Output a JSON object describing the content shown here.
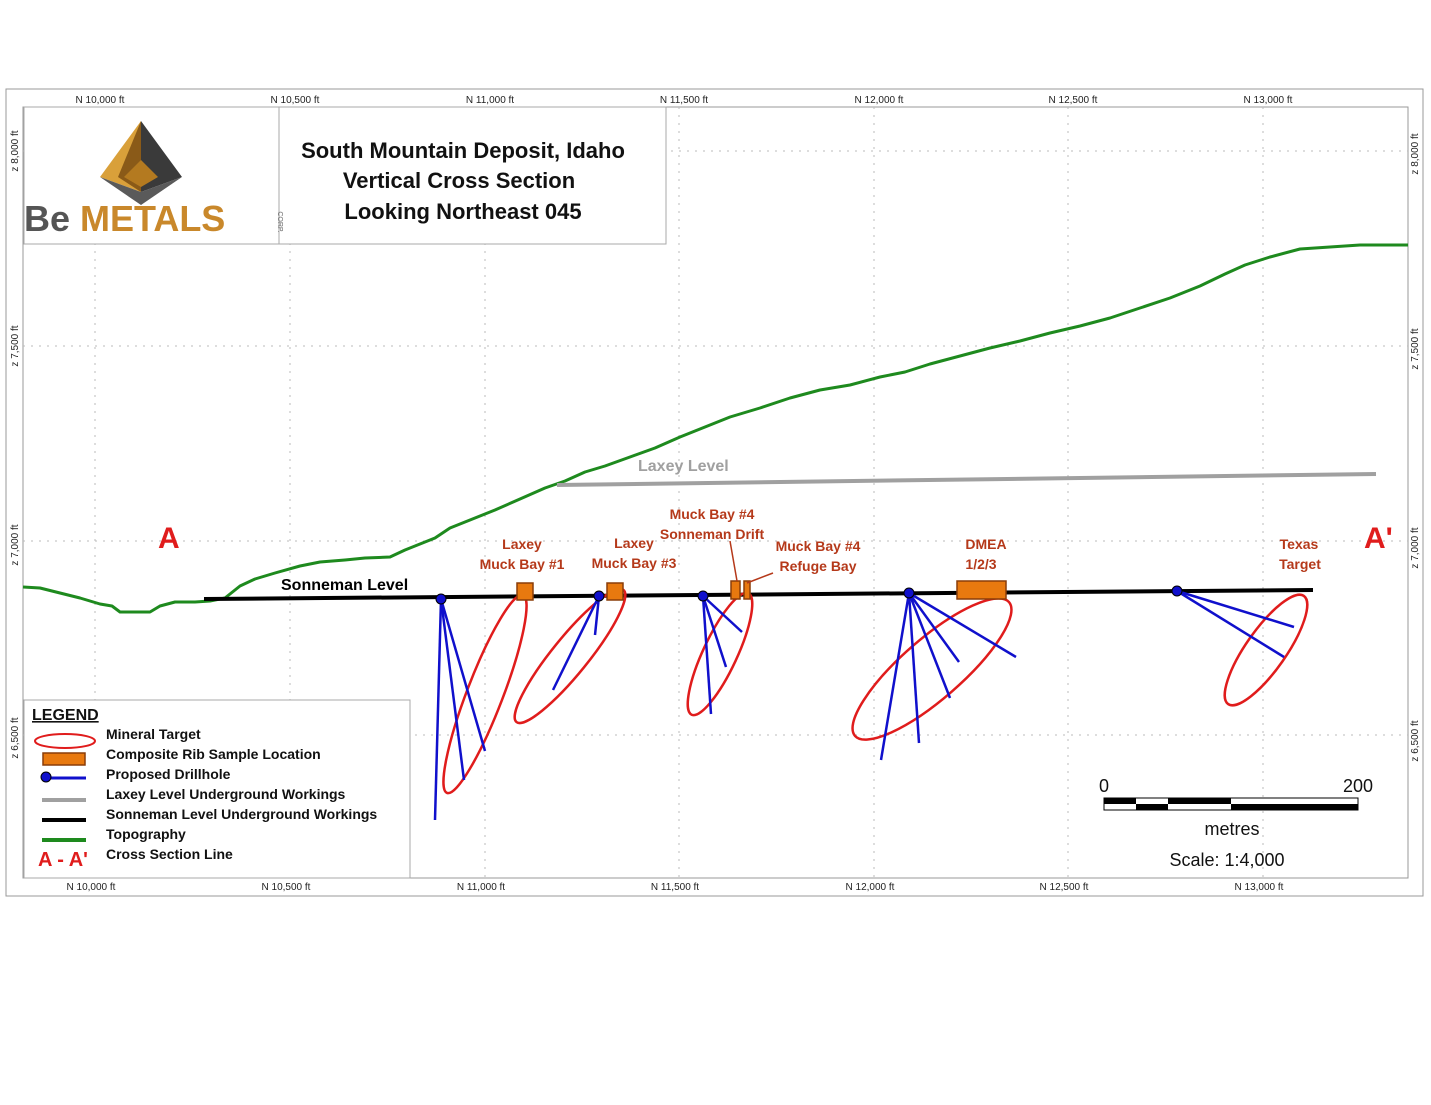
{
  "title": {
    "line1": "South Mountain Deposit, Idaho",
    "line2": "Vertical Cross Section",
    "line3": "Looking Northeast 045"
  },
  "logo": {
    "brand_be": "Be",
    "brand_metals": "METALS",
    "brand_corp": "CORP."
  },
  "axes": {
    "x_top": [
      "N 10,000 ft",
      "N 10,500 ft",
      "N 11,000 ft",
      "N 11,500 ft",
      "N 12,000 ft",
      "N 12,500 ft",
      "N 13,000 ft"
    ],
    "x_bottom": [
      "N 10,000 ft",
      "N 10,500 ft",
      "N 11,000 ft",
      "N 11,500 ft",
      "N 12,000 ft",
      "N 12,500 ft",
      "N 13,000 ft"
    ],
    "z": [
      "z 8,000 ft",
      "z 7,500 ft",
      "z 7,000 ft",
      "z 6,500 ft"
    ]
  },
  "section": {
    "start": "A",
    "end": "A'"
  },
  "levels": {
    "laxey": "Laxey Level",
    "sonneman": "Sonneman Level"
  },
  "targets": {
    "laxey1": [
      "Laxey",
      "Muck Bay #1"
    ],
    "laxey3": [
      "Laxey",
      "Muck Bay #3"
    ],
    "muck4_drift": [
      "Muck Bay #4",
      "Sonneman Drift"
    ],
    "muck4_refuge": [
      "Muck Bay #4",
      "Refuge Bay"
    ],
    "dmea": [
      "DMEA",
      "1/2/3"
    ],
    "texas": [
      "Texas",
      "Target"
    ]
  },
  "legend": {
    "title": "LEGEND",
    "items": [
      "Mineral Target",
      "Composite Rib Sample Location",
      "Proposed Drillhole",
      "Laxey Level Underground Workings",
      "Sonneman Level Underground Workings",
      "Topography",
      "Cross Section Line"
    ],
    "section_symbol": "A - A'"
  },
  "scale_bar": {
    "min": "0",
    "max": "200",
    "unit": "metres",
    "scale": "Scale: 1:4,000"
  },
  "colors": {
    "topography": "#1e8a1e",
    "sonneman": "#000000",
    "laxey": "#a0a0a0",
    "drillhole": "#1010cc",
    "target": "#e01c1c",
    "sample": "#e8790f",
    "label": "#b5391a",
    "section_line": "#e01c1c"
  }
}
